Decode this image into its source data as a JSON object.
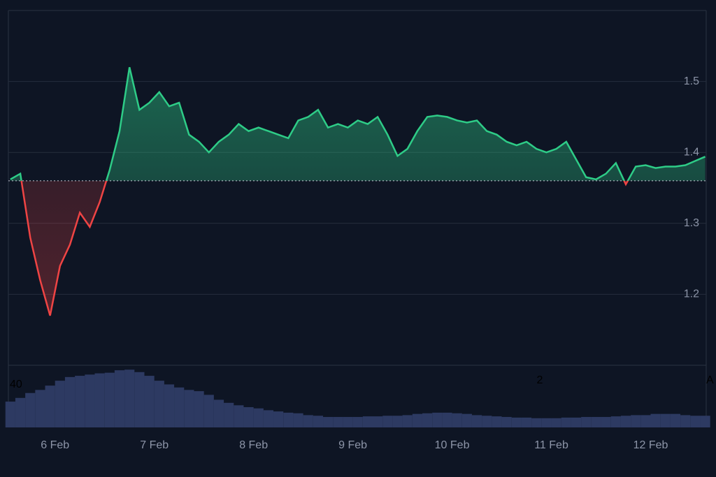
{
  "chart_data": {
    "type": "baseline",
    "x": [
      5.55,
      5.65,
      5.75,
      5.85,
      5.95,
      6.05,
      6.15,
      6.25,
      6.35,
      6.45,
      6.55,
      6.65,
      6.75,
      6.85,
      6.95,
      7.05,
      7.15,
      7.25,
      7.35,
      7.45,
      7.55,
      7.65,
      7.75,
      7.85,
      7.95,
      8.05,
      8.15,
      8.25,
      8.35,
      8.45,
      8.55,
      8.65,
      8.75,
      8.85,
      8.95,
      9.05,
      9.15,
      9.25,
      9.35,
      9.45,
      9.55,
      9.65,
      9.75,
      9.85,
      9.95,
      10.05,
      10.15,
      10.25,
      10.35,
      10.45,
      10.55,
      10.65,
      10.75,
      10.85,
      10.95,
      11.05,
      11.15,
      11.25,
      11.35,
      11.45,
      11.55,
      11.65,
      11.75,
      11.85,
      11.95,
      12.05,
      12.15,
      12.25,
      12.35,
      12.45,
      12.55
    ],
    "values": [
      1.362,
      1.37,
      1.28,
      1.22,
      1.17,
      1.24,
      1.27,
      1.315,
      1.295,
      1.33,
      1.375,
      1.43,
      1.52,
      1.46,
      1.47,
      1.485,
      1.465,
      1.47,
      1.425,
      1.415,
      1.4,
      1.415,
      1.425,
      1.44,
      1.43,
      1.435,
      1.43,
      1.425,
      1.42,
      1.445,
      1.45,
      1.46,
      1.435,
      1.44,
      1.435,
      1.445,
      1.44,
      1.45,
      1.425,
      1.395,
      1.405,
      1.43,
      1.45,
      1.452,
      1.45,
      1.445,
      1.442,
      1.445,
      1.43,
      1.425,
      1.415,
      1.41,
      1.415,
      1.405,
      1.4,
      1.405,
      1.415,
      1.39,
      1.365,
      1.362,
      1.37,
      1.385,
      1.355,
      1.38,
      1.382,
      1.378,
      1.38,
      1.38,
      1.382,
      1.388,
      1.394
    ],
    "baseline": 1.36,
    "up_color": "#2ecc87",
    "down_color": "#ef4444",
    "xlim": [
      5.53,
      12.56
    ],
    "xticks": [
      {
        "value": 6,
        "label": "6 Feb"
      },
      {
        "value": 7,
        "label": "7 Feb"
      },
      {
        "value": 8,
        "label": "8 Feb"
      },
      {
        "value": 9,
        "label": "9 Feb"
      },
      {
        "value": 10,
        "label": "10 Feb"
      },
      {
        "value": 11,
        "label": "11 Feb"
      },
      {
        "value": 12,
        "label": "12 Feb"
      }
    ],
    "ylim": [
      1.1,
      1.6
    ],
    "yticks": [
      1.2,
      1.3,
      1.4,
      1.5
    ],
    "grid": true,
    "volume": {
      "color": "#2d3a62",
      "ylim": [
        0,
        100
      ],
      "values": [
        42,
        48,
        56,
        61,
        68,
        76,
        82,
        84,
        86,
        88,
        89,
        93,
        94,
        90,
        84,
        76,
        70,
        65,
        61,
        59,
        53,
        45,
        40,
        36,
        33,
        31,
        28,
        26,
        24,
        23,
        20,
        19,
        17,
        17,
        17,
        17,
        18,
        18,
        19,
        19,
        20,
        22,
        23,
        24,
        24,
        23,
        22,
        20,
        19,
        18,
        17,
        16,
        16,
        15,
        15,
        15,
        16,
        16,
        17,
        17,
        17,
        18,
        19,
        20,
        20,
        22,
        22,
        22,
        20,
        19,
        19
      ]
    },
    "annotations": [
      "40",
      "2",
      "A"
    ]
  }
}
